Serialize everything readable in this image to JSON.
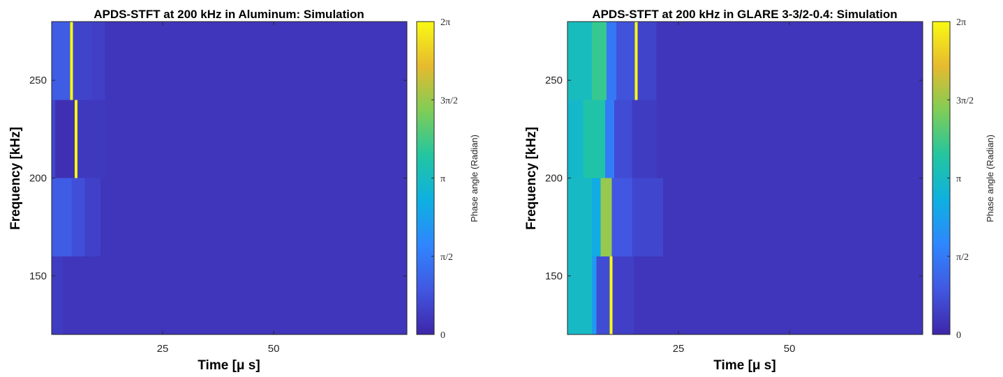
{
  "colors": {
    "stops": [
      "#3e26a8",
      "#4157e1",
      "#2f86fe",
      "#0eb0e1",
      "#22c5a1",
      "#7ecd57",
      "#e6ba2f",
      "#f9f913"
    ]
  },
  "chart_data": [
    {
      "type": "heatmap",
      "title": "APDS-STFT at 200 kHz in Aluminum: Simulation",
      "xlabel": "Time [μ s]",
      "ylabel": "Frequency [kHz]",
      "xlim": [
        0,
        80
      ],
      "ylim": [
        120,
        280
      ],
      "xticks": [
        {
          "value": 25,
          "label": "25"
        },
        {
          "value": 50,
          "label": "50"
        }
      ],
      "yticks": [
        {
          "value": 150,
          "label": "150"
        },
        {
          "value": 200,
          "label": "200"
        },
        {
          "value": 250,
          "label": "250"
        }
      ],
      "colorbar": {
        "label": "Phase angle (Radian)",
        "range": [
          0,
          6.2832
        ],
        "ticks": [
          {
            "value": 0,
            "label": "0"
          },
          {
            "value": 1.5708,
            "label": "π/2"
          },
          {
            "value": 3.1416,
            "label": "π"
          },
          {
            "value": 4.7124,
            "label": "3π/2"
          },
          {
            "value": 6.2832,
            "label": "2π"
          }
        ]
      },
      "bands": [
        {
          "f0": 240,
          "f1": 280,
          "segments": [
            {
              "t0": 0,
              "t1": 4.2,
              "v": 1.0
            },
            {
              "t0": 4.2,
              "t1": 4.8,
              "v": 6.28
            },
            {
              "t0": 4.8,
              "t1": 9,
              "v": 0.55
            },
            {
              "t0": 9,
              "t1": 12,
              "v": 0.45
            },
            {
              "t0": 12,
              "t1": 80,
              "v": 0.3
            }
          ]
        },
        {
          "f0": 200,
          "f1": 240,
          "segments": [
            {
              "t0": 0,
              "t1": 0.8,
              "v": 0.6
            },
            {
              "t0": 0.8,
              "t1": 5.2,
              "v": 0.18
            },
            {
              "t0": 5.2,
              "t1": 5.8,
              "v": 6.28
            },
            {
              "t0": 5.8,
              "t1": 12,
              "v": 0.35
            },
            {
              "t0": 12,
              "t1": 80,
              "v": 0.3
            }
          ]
        },
        {
          "f0": 160,
          "f1": 200,
          "segments": [
            {
              "t0": 0,
              "t1": 4.5,
              "v": 1.0
            },
            {
              "t0": 4.5,
              "t1": 7.5,
              "v": 0.75
            },
            {
              "t0": 7.5,
              "t1": 11,
              "v": 0.5
            },
            {
              "t0": 11,
              "t1": 80,
              "v": 0.3
            }
          ]
        },
        {
          "f0": 120,
          "f1": 160,
          "segments": [
            {
              "t0": 0,
              "t1": 2.5,
              "v": 0.4
            },
            {
              "t0": 2.5,
              "t1": 80,
              "v": 0.3
            }
          ]
        }
      ]
    },
    {
      "type": "heatmap",
      "title": "APDS-STFT at 200 kHz in GLARE 3-3/2-0.4: Simulation",
      "xlabel": "Time [μ s]",
      "ylabel": "Frequency [kHz]",
      "xlim": [
        0,
        80
      ],
      "ylim": [
        120,
        280
      ],
      "xticks": [
        {
          "value": 25,
          "label": "25"
        },
        {
          "value": 50,
          "label": "50"
        }
      ],
      "yticks": [
        {
          "value": 150,
          "label": "150"
        },
        {
          "value": 200,
          "label": "200"
        },
        {
          "value": 250,
          "label": "250"
        }
      ],
      "colorbar": {
        "label": "Phase angle (Radian)",
        "range": [
          0,
          6.2832
        ],
        "ticks": [
          {
            "value": 0,
            "label": "0"
          },
          {
            "value": 1.5708,
            "label": "π/2"
          },
          {
            "value": 3.1416,
            "label": "π"
          },
          {
            "value": 4.7124,
            "label": "3π/2"
          },
          {
            "value": 6.2832,
            "label": "2π"
          }
        ]
      },
      "bands": [
        {
          "f0": 240,
          "f1": 280,
          "segments": [
            {
              "t0": 0,
              "t1": 5.5,
              "v": 3.2
            },
            {
              "t0": 5.5,
              "t1": 8.8,
              "v": 3.8
            },
            {
              "t0": 8.8,
              "t1": 11,
              "v": 1.5
            },
            {
              "t0": 11,
              "t1": 15.2,
              "v": 0.8
            },
            {
              "t0": 15.2,
              "t1": 15.8,
              "v": 6.28
            },
            {
              "t0": 15.8,
              "t1": 20,
              "v": 0.55
            },
            {
              "t0": 20,
              "t1": 80,
              "v": 0.3
            }
          ]
        },
        {
          "f0": 200,
          "f1": 240,
          "segments": [
            {
              "t0": 0,
              "t1": 3.5,
              "v": 3.0
            },
            {
              "t0": 3.5,
              "t1": 8.5,
              "v": 3.5
            },
            {
              "t0": 8.5,
              "t1": 10.5,
              "v": 1.6
            },
            {
              "t0": 10.5,
              "t1": 14.5,
              "v": 0.7
            },
            {
              "t0": 14.5,
              "t1": 20,
              "v": 0.4
            },
            {
              "t0": 20,
              "t1": 80,
              "v": 0.3
            }
          ]
        },
        {
          "f0": 160,
          "f1": 200,
          "segments": [
            {
              "t0": 0,
              "t1": 5.5,
              "v": 3.1
            },
            {
              "t0": 5.5,
              "t1": 7.5,
              "v": 2.6
            },
            {
              "t0": 7.5,
              "t1": 10,
              "v": 4.7
            },
            {
              "t0": 10,
              "t1": 14.5,
              "v": 0.9
            },
            {
              "t0": 14.5,
              "t1": 21.5,
              "v": 0.6
            },
            {
              "t0": 21.5,
              "t1": 80,
              "v": 0.3
            }
          ]
        },
        {
          "f0": 120,
          "f1": 160,
          "segments": [
            {
              "t0": 0,
              "t1": 5.5,
              "v": 3.1
            },
            {
              "t0": 5.5,
              "t1": 6.5,
              "v": 2.2
            },
            {
              "t0": 6.5,
              "t1": 9.5,
              "v": 0.7
            },
            {
              "t0": 9.5,
              "t1": 10.1,
              "v": 6.28
            },
            {
              "t0": 10.1,
              "t1": 15,
              "v": 0.45
            },
            {
              "t0": 15,
              "t1": 80,
              "v": 0.3
            }
          ]
        }
      ]
    }
  ]
}
